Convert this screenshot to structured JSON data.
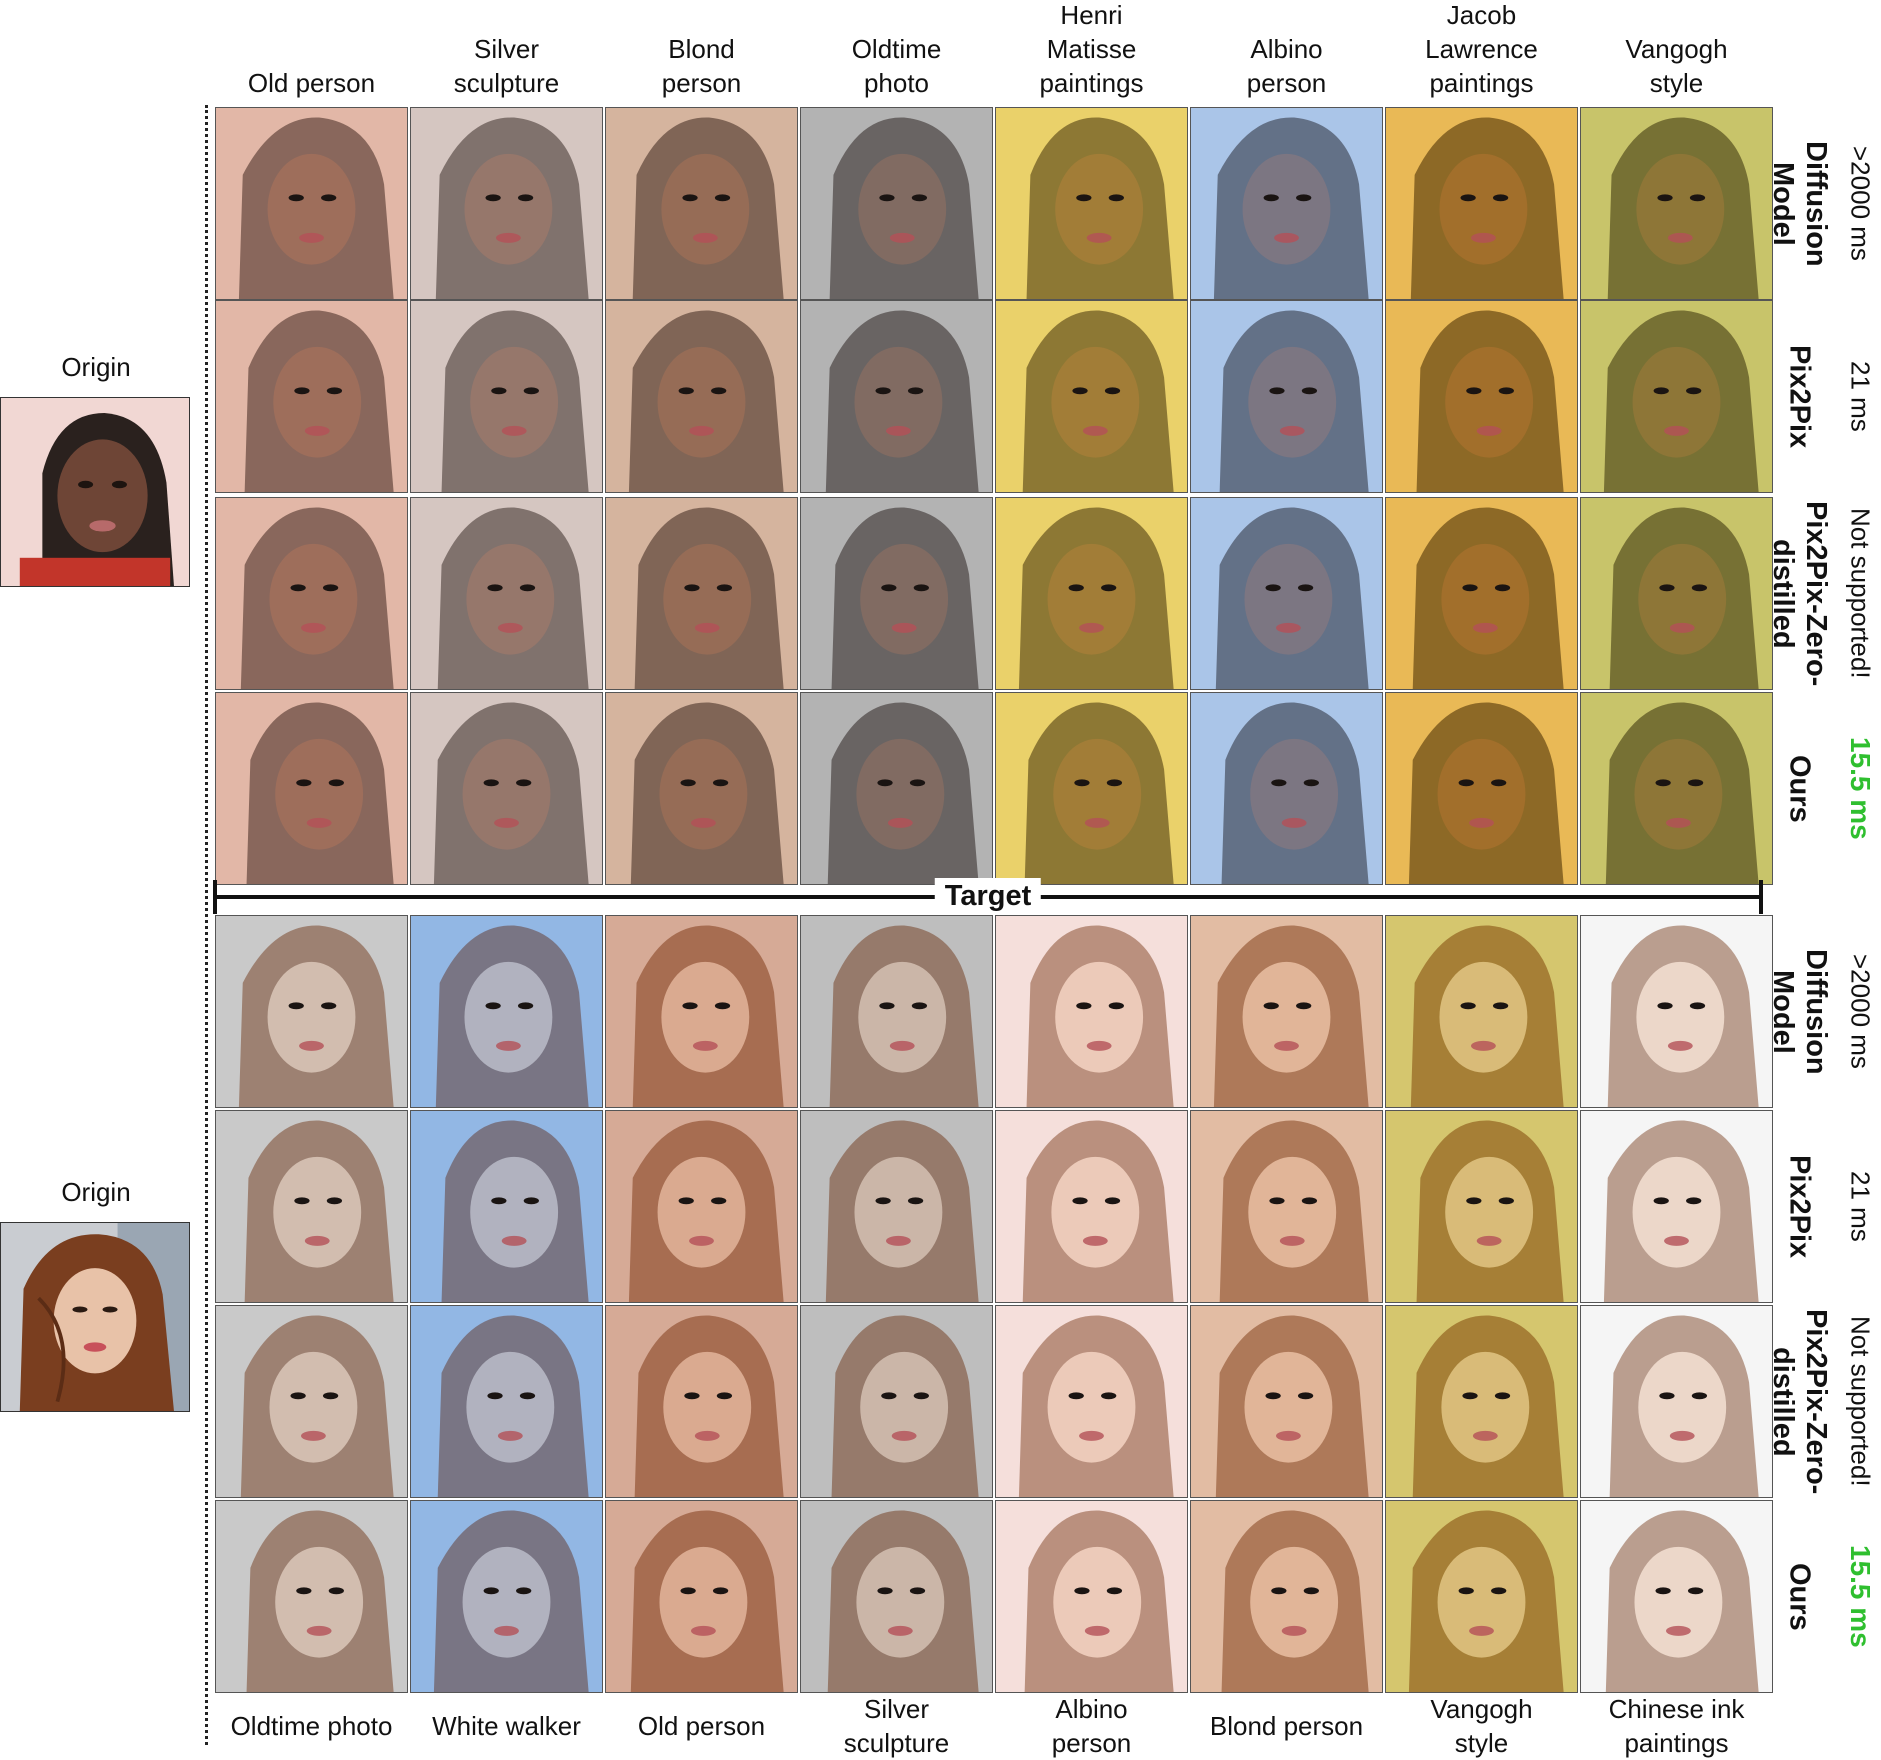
{
  "top_section": {
    "origin_label": "Origin",
    "columns": [
      "Old person",
      "Silver\nsculpture",
      "Blond\nperson",
      "Oldtime\nphoto",
      "Henri\nMatisse\npaintings",
      "Albino\nperson",
      "Jacob\nLawrence\npaintings",
      "Vangogh\nstyle"
    ],
    "rows": [
      {
        "method": "Diffusion\nModel",
        "timing": ">2000 ms"
      },
      {
        "method": "Pix2Pix",
        "timing": "21 ms"
      },
      {
        "method": "Pix2Pix-Zero-\ndistilled",
        "timing": "Not supported!"
      },
      {
        "method": "Ours",
        "timing": "15.5 ms"
      }
    ],
    "tints": [
      "#d9a08a",
      "#c8b4ad",
      "#c79b7f",
      "#9a9a9a",
      "#e3c23a",
      "#8fb2e0",
      "#e2a21e",
      "#b6b13a"
    ],
    "skin": "#6e4536",
    "hair": "#2a211e"
  },
  "target_label": "Target",
  "bottom_section": {
    "origin_label": "Origin",
    "columns": [
      "Oldtime photo",
      "White walker",
      "Old person",
      "Silver\nsculpture",
      "Albino\nperson",
      "Blond person",
      "Vangogh\nstyle",
      "Chinese ink\npaintings"
    ],
    "rows": [
      {
        "method": "Diffusion\nModel",
        "timing": ">2000 ms"
      },
      {
        "method": "Pix2Pix",
        "timing": "21 ms"
      },
      {
        "method": "Pix2Pix-Zero-\ndistilled",
        "timing": "Not supported!"
      },
      {
        "method": "Ours",
        "timing": "15.5 ms"
      }
    ],
    "tints": [
      "#b8b8b8",
      "#6f9fdc",
      "#c98e74",
      "#a9a9a9",
      "#f1d4cf",
      "#d9a685",
      "#c7b43f",
      "#f2f2f2"
    ],
    "skin": "#e8c2a8",
    "hair": "#7a3e1f"
  },
  "colors": {
    "ours_timing": "#2fbf2f",
    "origin_top_background": "#f1d7d3",
    "origin_top_shirt": "#c2352a",
    "origin_bottom_background": "#c9ccd1"
  }
}
